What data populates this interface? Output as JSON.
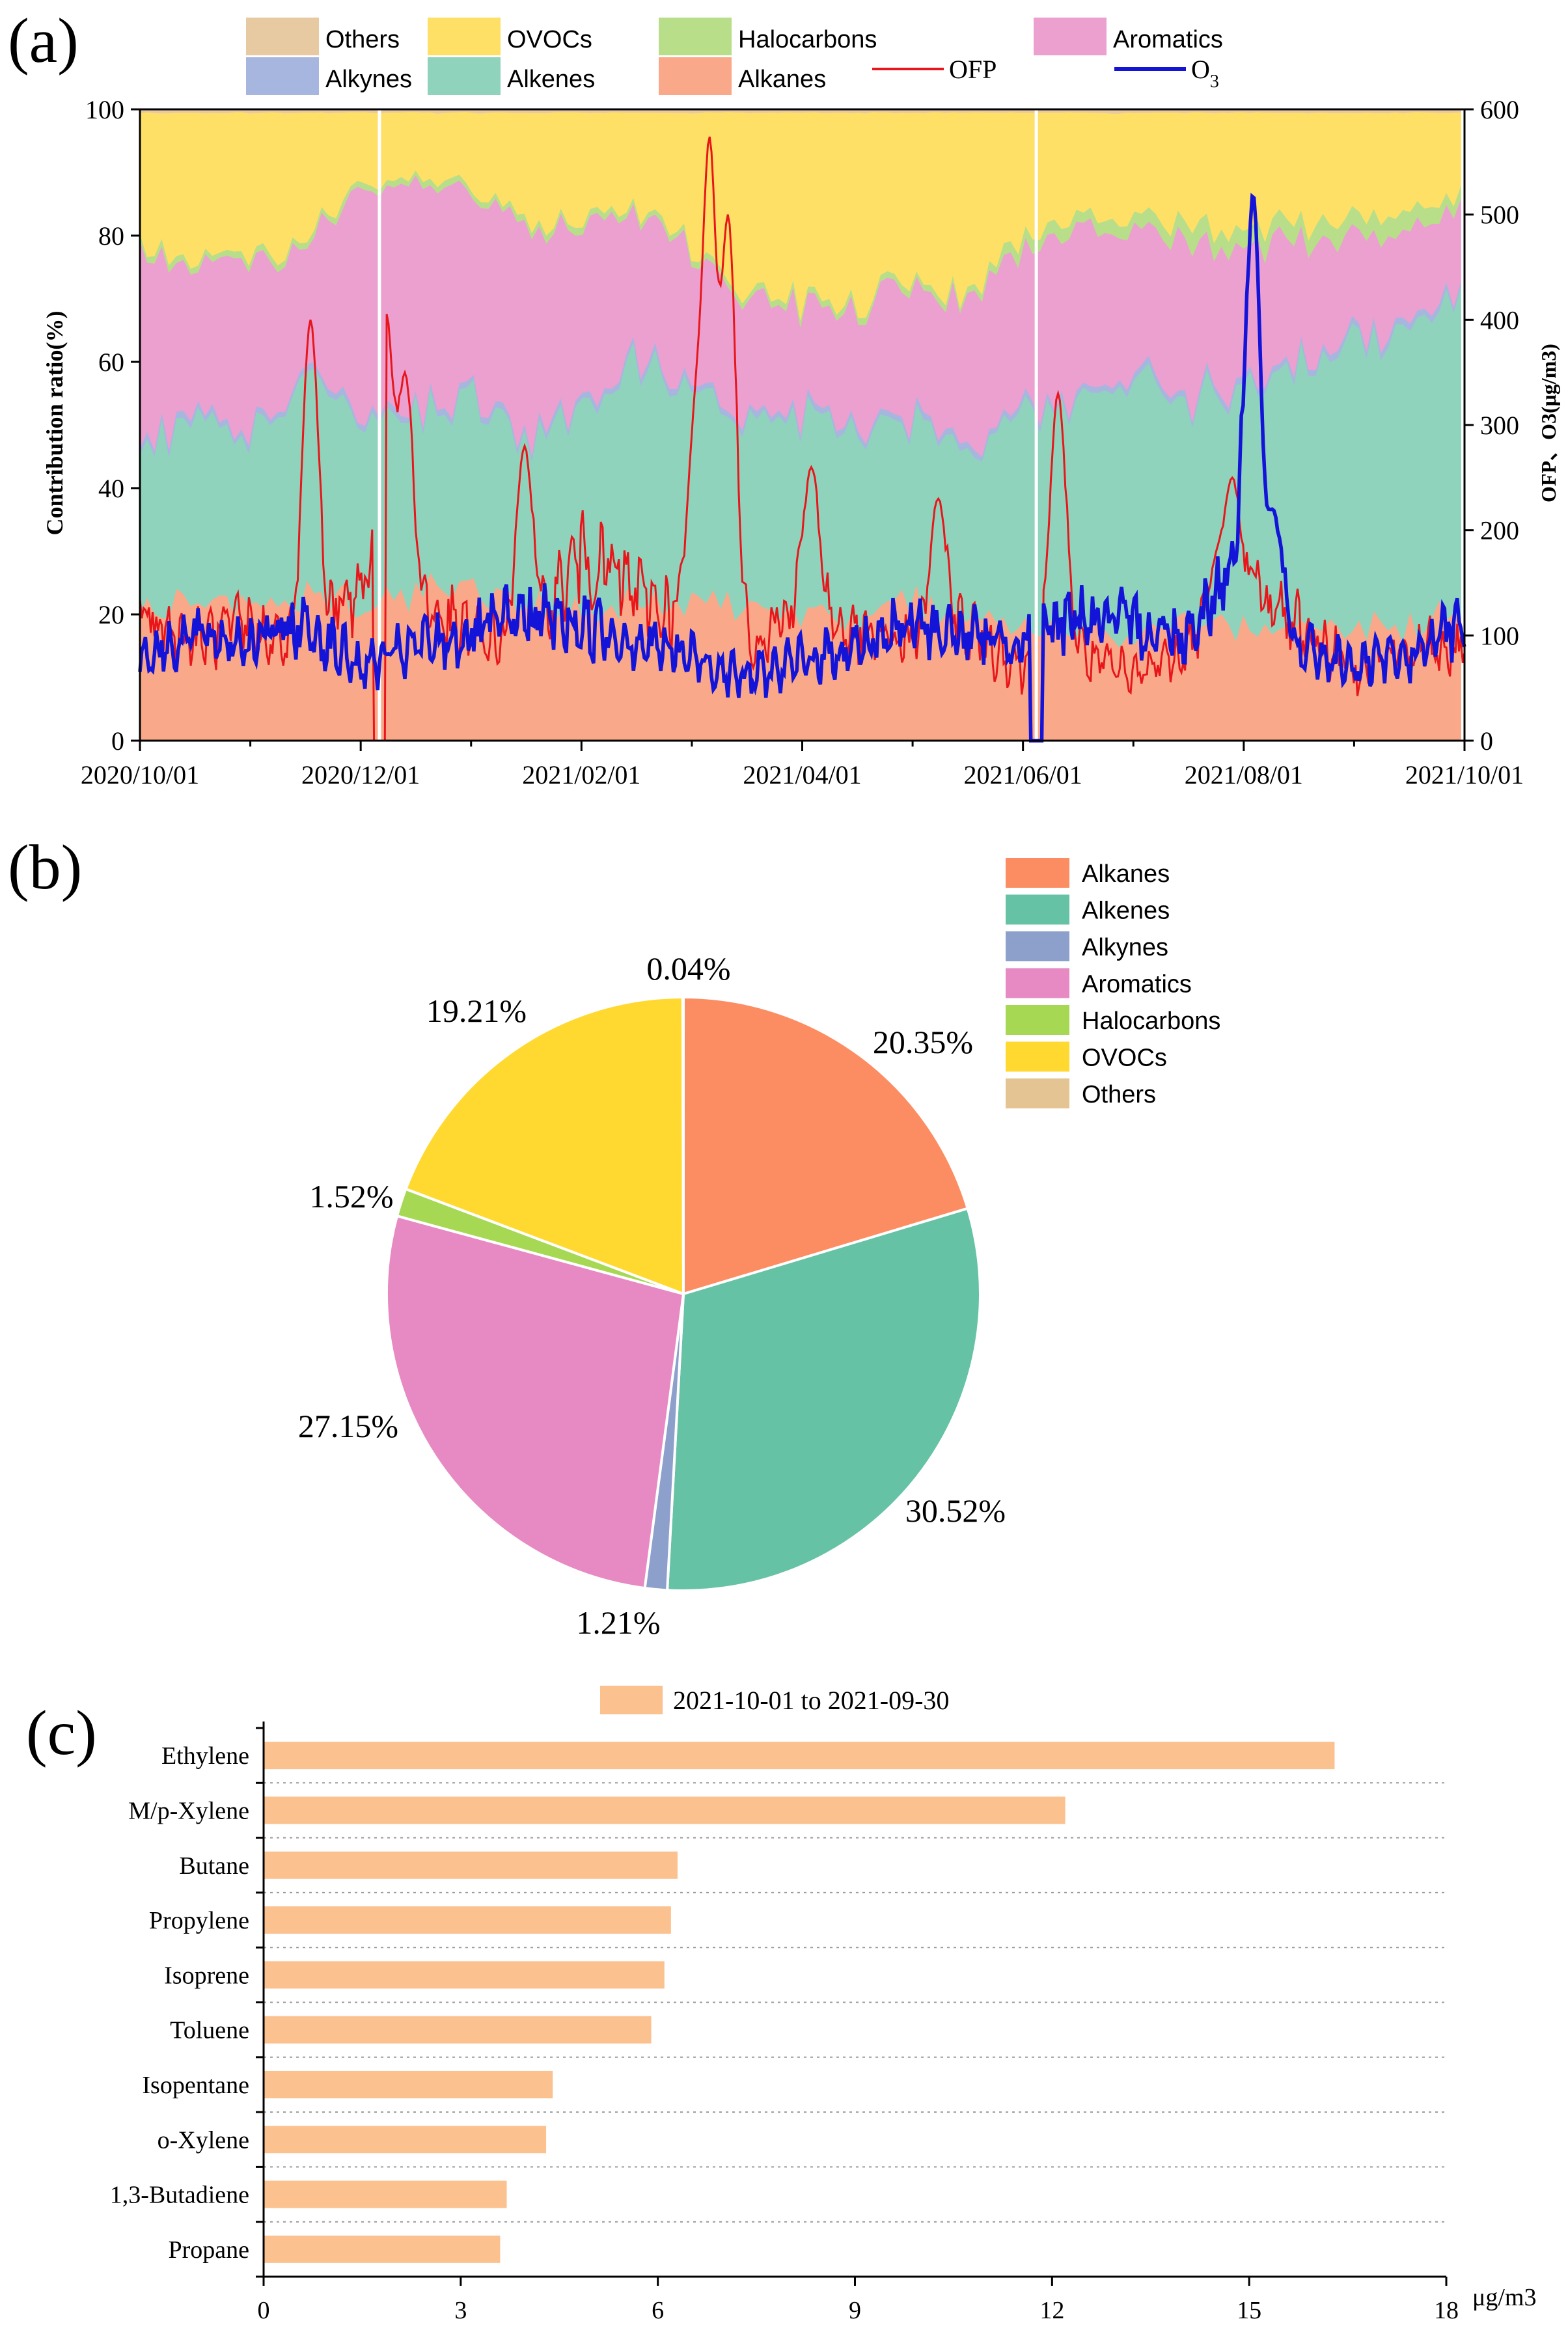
{
  "figure": {
    "panel_labels": [
      "(a)",
      "(b)",
      "(c)"
    ]
  },
  "chart_data": [
    {
      "id": "a",
      "type": "area",
      "subtype": "stacked-percent-with-overlay-lines",
      "ylabel": "Contribution ratio(%)",
      "ylabel_right": "OFP、O3(μg/m3)",
      "ylim": [
        0,
        100
      ],
      "y2lim": [
        0,
        600
      ],
      "yticks": [
        0,
        20,
        40,
        60,
        80,
        100
      ],
      "y2ticks": [
        0,
        100,
        200,
        300,
        400,
        500,
        600
      ],
      "xticks": [
        "2020/10/01",
        "2020/12/01",
        "2021/02/01",
        "2021/04/01",
        "2021/06/01",
        "2021/08/01",
        "2021/10/01"
      ],
      "legend": [
        {
          "name": "Others",
          "kind": "area",
          "color": "#E7C9A2"
        },
        {
          "name": "OVOCs",
          "kind": "area",
          "color": "#FFE066"
        },
        {
          "name": "Halocarbons",
          "kind": "area",
          "color": "#B8DE8A"
        },
        {
          "name": "Aromatics",
          "kind": "area",
          "color": "#EBA0CF"
        },
        {
          "name": "Alkynes",
          "kind": "area",
          "color": "#A7B6DF"
        },
        {
          "name": "Alkenes",
          "kind": "area",
          "color": "#8FD3BC"
        },
        {
          "name": "Alkanes",
          "kind": "area",
          "color": "#F9A98A"
        },
        {
          "name": "OFP",
          "kind": "line",
          "color": "#E8161B"
        },
        {
          "name": "O3",
          "kind": "line",
          "color": "#1414D8"
        }
      ],
      "series_points": {
        "days": [
          0,
          15,
          30,
          45,
          61,
          76,
          91,
          106,
          122,
          137,
          152,
          167,
          182,
          197,
          212,
          227,
          243,
          258,
          273,
          288,
          304,
          319,
          334,
          349,
          365
        ],
        "Alkanes": [
          20,
          22,
          21,
          23,
          22,
          24,
          25,
          21,
          20,
          22,
          23,
          21,
          20,
          19,
          22,
          21,
          18,
          17,
          16,
          18,
          17,
          18,
          19,
          18,
          20
        ],
        "Alkenes": [
          28,
          30,
          26,
          34,
          30,
          28,
          30,
          27,
          33,
          36,
          34,
          30,
          32,
          30,
          28,
          26,
          33,
          36,
          42,
          35,
          38,
          40,
          44,
          47,
          50
        ],
        "Alkynes": [
          1,
          1,
          1,
          1,
          1,
          1,
          1,
          1,
          1,
          1,
          1,
          1,
          1,
          1,
          1,
          1,
          1,
          1,
          1,
          1,
          1,
          1,
          1,
          1,
          1
        ],
        "Aromatics": [
          30,
          22,
          28,
          20,
          34,
          36,
          30,
          32,
          28,
          24,
          20,
          18,
          16,
          18,
          20,
          22,
          25,
          26,
          23,
          24,
          22,
          20,
          16,
          14,
          13
        ],
        "Halocarbons": [
          1,
          1,
          1,
          1,
          1,
          1,
          1,
          1,
          1,
          1,
          1,
          1,
          1,
          1,
          1,
          1,
          2,
          2,
          2,
          3,
          3,
          3,
          3,
          3,
          2
        ],
        "OVOCs": [
          19.5,
          23.5,
          22.5,
          20.5,
          11.5,
          9.5,
          12.5,
          17.5,
          16.5,
          15.5,
          20.5,
          28.5,
          29.5,
          30.5,
          27.5,
          28.5,
          20.5,
          17.5,
          15.5,
          18.5,
          18.5,
          17.5,
          16.5,
          16.5,
          13.5
        ],
        "Others": [
          0.5,
          0.5,
          0.5,
          0.5,
          0.5,
          0.5,
          0.5,
          0.5,
          0.5,
          0.5,
          0.5,
          0.5,
          0.5,
          0.5,
          0.5,
          0.5,
          0.5,
          0.5,
          0.5,
          0.5,
          0.5,
          0.5,
          0.5,
          0.5,
          0.5
        ],
        "OFP": [
          120,
          95,
          110,
          80,
          150,
          130,
          100,
          90,
          180,
          140,
          110,
          90,
          130,
          100,
          95,
          110,
          70,
          85,
          60,
          90,
          150,
          110,
          70,
          85,
          90
        ],
        "O3": [
          80,
          100,
          95,
          110,
          70,
          90,
          100,
          120,
          110,
          95,
          80,
          60,
          75,
          90,
          110,
          100,
          95,
          120,
          110,
          100,
          180,
          90,
          70,
          80,
          110
        ]
      },
      "ofp_spikes": [
        {
          "day": 47,
          "value": 400
        },
        {
          "day": 68,
          "value": 410
        },
        {
          "day": 73,
          "value": 350
        },
        {
          "day": 106,
          "value": 280
        },
        {
          "day": 153,
          "value": 280
        },
        {
          "day": 157,
          "value": 580
        },
        {
          "day": 162,
          "value": 500
        },
        {
          "day": 185,
          "value": 260
        },
        {
          "day": 220,
          "value": 230
        },
        {
          "day": 253,
          "value": 330
        },
        {
          "day": 297,
          "value": 170
        },
        {
          "day": 301,
          "value": 250
        }
      ],
      "o3_spikes": [
        {
          "day": 307,
          "value": 540
        },
        {
          "day": 312,
          "value": 220
        }
      ],
      "gaps": [
        {
          "day": 66,
          "o3": false
        },
        {
          "day": 247,
          "o3": true
        }
      ]
    },
    {
      "id": "b",
      "type": "pie",
      "slices": [
        {
          "name": "Alkanes",
          "value": 20.35,
          "label": "20.35%",
          "color": "#FC8D62"
        },
        {
          "name": "Alkenes",
          "value": 30.52,
          "label": "30.52%",
          "color": "#66C2A5"
        },
        {
          "name": "Alkynes",
          "value": 1.21,
          "label": "1.21%",
          "color": "#8DA0CB"
        },
        {
          "name": "Aromatics",
          "value": 27.15,
          "label": "27.15%",
          "color": "#E78AC3"
        },
        {
          "name": "Halocarbons",
          "value": 1.52,
          "label": "1.52%",
          "color": "#A6D854"
        },
        {
          "name": "OVOCs",
          "value": 19.21,
          "label": "19.21%",
          "color": "#FFD92F"
        },
        {
          "name": "Others",
          "value": 0.04,
          "label": "0.04%",
          "color": "#E5C494"
        }
      ],
      "legend_position": "right"
    },
    {
      "id": "c",
      "type": "bar",
      "orientation": "horizontal",
      "legend": "2021-10-01 to 2021-09-30",
      "categories": [
        "Ethylene",
        "M/p-Xylene",
        "Butane",
        "Propylene",
        "Isoprene",
        "Toluene",
        "Isopentane",
        "o-Xylene",
        "1,3-Butadiene",
        "Propane"
      ],
      "values": [
        16.3,
        12.2,
        6.3,
        6.2,
        6.1,
        5.9,
        4.4,
        4.3,
        3.7,
        3.6
      ],
      "xlim": [
        0,
        18
      ],
      "xticks": [
        0,
        3,
        6,
        9,
        12,
        15,
        18
      ],
      "xlabel": "μg/m3",
      "bar_color": "#FBC18F"
    }
  ]
}
